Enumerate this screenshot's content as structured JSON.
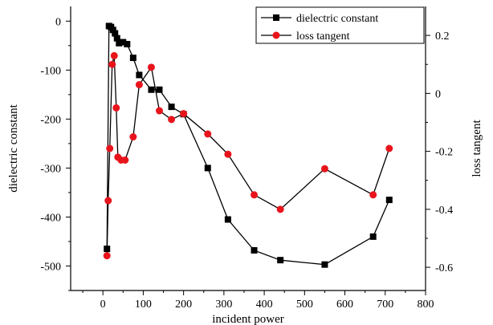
{
  "chart_data": {
    "type": "line",
    "xlabel": "incident power",
    "ylabel_left": "dielectric constant",
    "ylabel_right": "loss tangent",
    "xlim": [
      -80,
      800
    ],
    "x_ticks": [
      0,
      100,
      200,
      300,
      400,
      500,
      600,
      700,
      800
    ],
    "ylim_left": [
      -550,
      30
    ],
    "y_ticks_left": [
      0,
      -100,
      -200,
      -300,
      -400,
      -500
    ],
    "ylim_right": [
      -0.68,
      0.3
    ],
    "y_ticks_right": [
      0.2,
      0,
      -0.2,
      -0.4,
      -0.6
    ],
    "legend_position": "top-right",
    "colors": {
      "dielectric": "#000000",
      "loss": "#e8141c"
    },
    "series": [
      {
        "name": "dielectric constant",
        "axis": "left",
        "marker": "square",
        "x": [
          10,
          15,
          20,
          25,
          30,
          35,
          40,
          50,
          60,
          75,
          90,
          120,
          140,
          170,
          200,
          260,
          310,
          375,
          440,
          550,
          670,
          710
        ],
        "y": [
          -465,
          -10,
          -12,
          -18,
          -25,
          -35,
          -45,
          -43,
          -47,
          -75,
          -110,
          -140,
          -140,
          -175,
          -190,
          -300,
          -405,
          -468,
          -488,
          -497,
          -440,
          -365
        ]
      },
      {
        "name": "loss tangent",
        "axis": "right",
        "marker": "circle",
        "x": [
          10,
          13,
          17,
          23,
          28,
          33,
          37,
          45,
          55,
          75,
          90,
          120,
          140,
          170,
          200,
          260,
          310,
          375,
          440,
          550,
          670,
          710
        ],
        "y": [
          -0.56,
          -0.37,
          -0.19,
          0.1,
          0.13,
          -0.05,
          -0.22,
          -0.23,
          -0.23,
          -0.15,
          0.03,
          0.09,
          -0.06,
          -0.09,
          -0.07,
          -0.14,
          -0.21,
          -0.35,
          -0.4,
          -0.26,
          -0.35,
          -0.19
        ]
      }
    ]
  }
}
